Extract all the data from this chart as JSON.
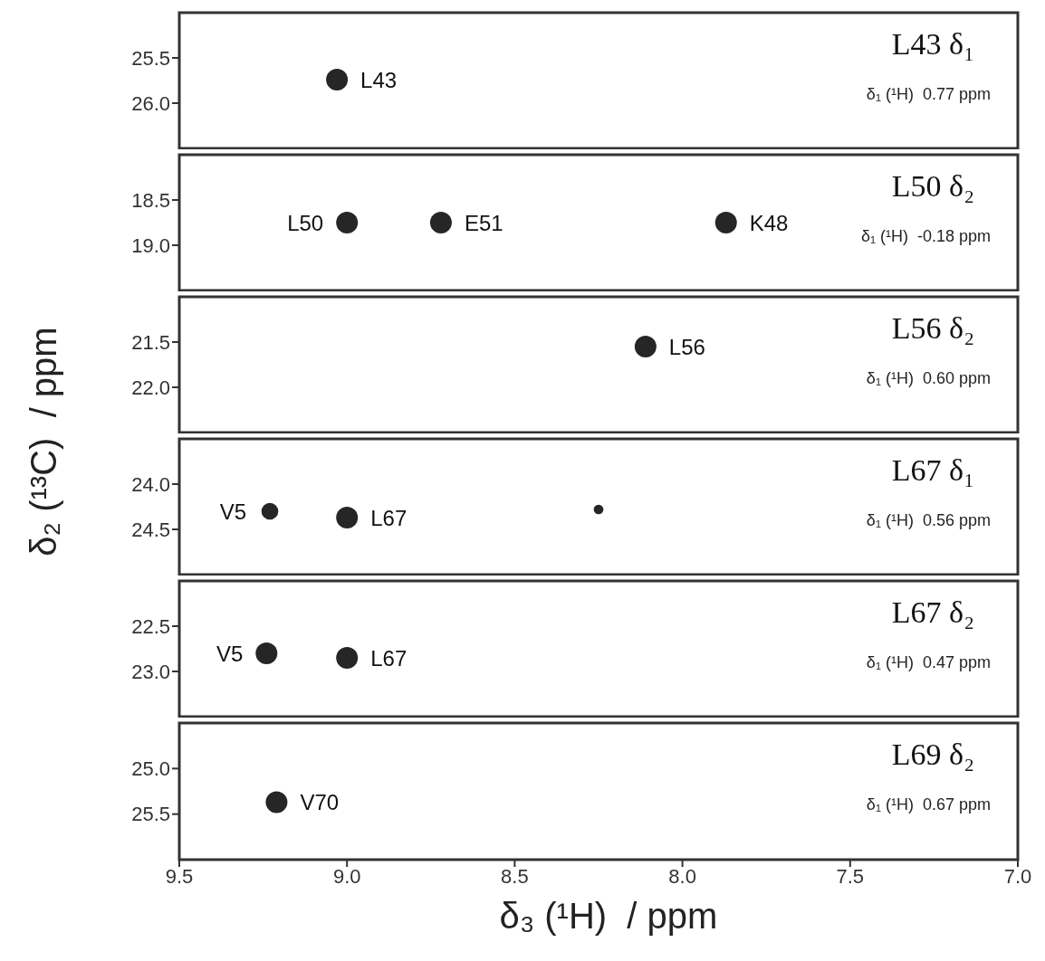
{
  "chart_data": [
    {
      "type": "scatter",
      "title": "L43 δ₁",
      "subtitle": "δ₁ (¹H)  0.77 ppm",
      "ylabel": "δ₂ (¹³C)  / ppm",
      "x": [
        9.03
      ],
      "values": [
        25.74
      ],
      "color": "#262626",
      "marker": "circle",
      "xlim": [
        9.5,
        7.0
      ],
      "xticks": [
        9.5,
        9,
        8.5,
        8,
        7.5,
        7
      ],
      "ylim": [
        26.5,
        25.0
      ],
      "yticks": [
        25.5,
        {
          "value": 26,
          "label": "26.0"
        }
      ],
      "tick_labels": "y",
      "annotations": [
        {
          "text": "L43",
          "x": 9.03,
          "y": 25.74
        }
      ]
    },
    {
      "type": "scatter",
      "title": "L50 δ₂",
      "subtitle": "δ₁ (¹H)  -0.18 ppm",
      "x": [
        9.0,
        8.72,
        7.87
      ],
      "values": [
        18.75,
        18.75,
        18.75
      ],
      "color": "#262626",
      "marker": "circle",
      "xlim": [
        9.5,
        7.0
      ],
      "xticks": [
        9.5,
        9,
        8.5,
        8,
        7.5,
        7
      ],
      "ylim": [
        19.5,
        18.0
      ],
      "yticks": [
        18.5,
        {
          "value": 19,
          "label": "19.0"
        }
      ],
      "tick_labels": "y",
      "annotations": [
        {
          "text": "L50",
          "x": 9.0,
          "y": 18.75
        },
        {
          "text": "E51",
          "x": 8.72,
          "y": 18.75
        },
        {
          "text": "K48",
          "x": 7.87,
          "y": 18.75
        }
      ]
    },
    {
      "type": "scatter",
      "title": "L56 δ₂",
      "subtitle": "δ₁ (¹H)  0.60 ppm",
      "x": [
        8.11
      ],
      "values": [
        21.55
      ],
      "color": "#262626",
      "marker": "circle",
      "xlim": [
        9.5,
        7.0
      ],
      "xticks": [
        9.5,
        9,
        8.5,
        8,
        7.5,
        7
      ],
      "ylim": [
        22.5,
        21.0
      ],
      "yticks": [
        21.5,
        {
          "value": 22,
          "label": "22.0"
        }
      ],
      "tick_labels": "y",
      "annotations": [
        {
          "text": "L56",
          "x": 8.11,
          "y": 21.55
        }
      ]
    },
    {
      "type": "scatter",
      "title": "L67 δ₁",
      "subtitle": "δ₁ (¹H)  0.56 ppm",
      "x": [
        9.23,
        9.0,
        8.25
      ],
      "values": [
        24.3,
        24.37,
        24.28
      ],
      "sizes": [
        0.6,
        1,
        0.2
      ],
      "color": "#262626",
      "marker": "circle",
      "xlim": [
        9.5,
        7.0
      ],
      "xticks": [
        9.5,
        9,
        8.5,
        8,
        7.5,
        7
      ],
      "ylim": [
        25.0,
        23.5
      ],
      "yticks": [
        {
          "value": 24,
          "label": "24.0"
        },
        24.5
      ],
      "tick_labels": "y",
      "annotations": [
        {
          "text": "V5",
          "x": 9.23,
          "y": 24.3
        },
        {
          "text": "L67",
          "x": 9.0,
          "y": 24.37
        }
      ]
    },
    {
      "type": "scatter",
      "title": "L67 δ₂",
      "subtitle": "δ₁ (¹H)  0.47 ppm",
      "x": [
        9.24,
        9.0
      ],
      "values": [
        22.8,
        22.85
      ],
      "color": "#262626",
      "marker": "circle",
      "xlim": [
        9.5,
        7.0
      ],
      "xticks": [
        9.5,
        9,
        8.5,
        8,
        7.5,
        7
      ],
      "ylim": [
        23.5,
        22.0
      ],
      "yticks": [
        22.5,
        {
          "value": 23,
          "label": "23.0"
        }
      ],
      "tick_labels": "y",
      "annotations": [
        {
          "text": "V5",
          "x": 9.24,
          "y": 22.8
        },
        {
          "text": "L67",
          "x": 9.0,
          "y": 22.85
        }
      ]
    },
    {
      "type": "scatter",
      "title": "L69 δ₂",
      "subtitle": "δ₁ (¹H)  0.67 ppm",
      "xlabel": "δ₃ (¹H)  / ppm",
      "x": [
        9.21
      ],
      "values": [
        25.37
      ],
      "color": "#262626",
      "marker": "circle",
      "xlim": [
        9.5,
        7.0
      ],
      "xticks": [
        9.5,
        {
          "value": 9,
          "label": "9.0"
        },
        8.5,
        {
          "value": 8,
          "label": "8.0"
        },
        7.5,
        {
          "value": 7,
          "label": "7.0"
        }
      ],
      "ylim": [
        26.0,
        24.5
      ],
      "yticks": [
        {
          "value": 25,
          "label": "25.0"
        },
        25.5
      ],
      "annotations": [
        {
          "text": "V70",
          "x": 9.21,
          "y": 25.37
        }
      ]
    }
  ]
}
